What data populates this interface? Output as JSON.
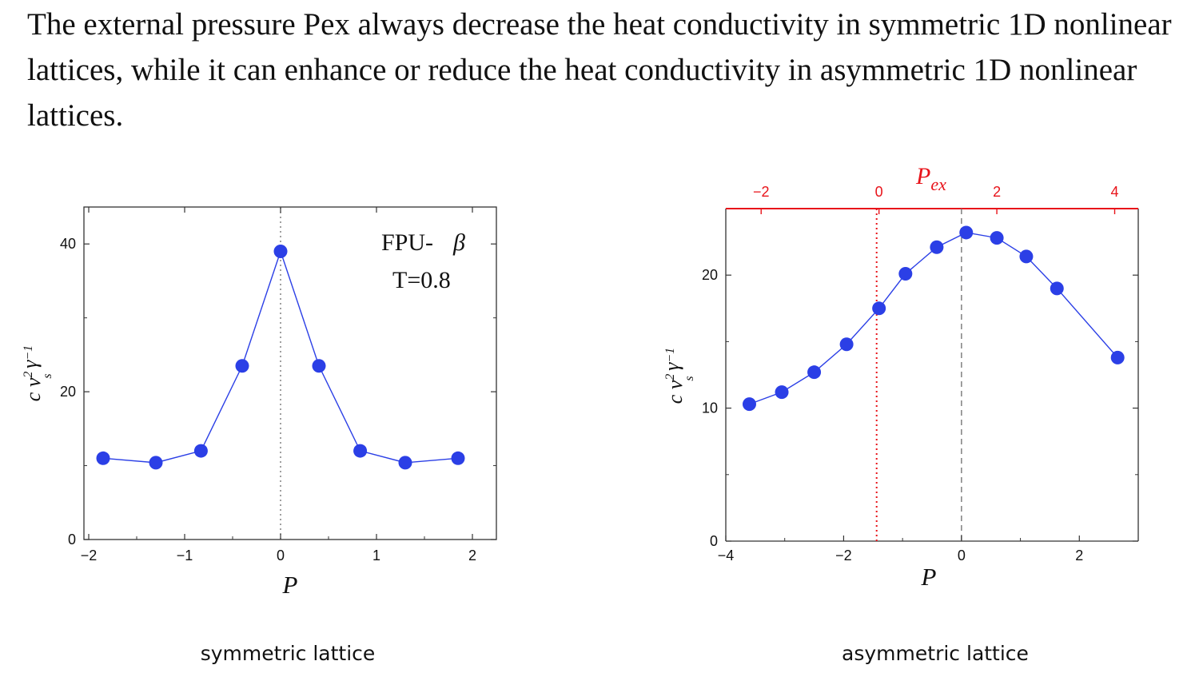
{
  "headline": "The external pressure Pex always decrease the heat conductivity in symmetric 1D nonlinear lattices, while it can enhance or reduce the heat conductivity in asymmetric 1D nonlinear lattices.",
  "colors": {
    "marker": "#2b3fe6",
    "line": "#2b3fe6",
    "red_axis": "#e8131a",
    "frame": "#333333"
  },
  "chart_data": [
    {
      "type": "line",
      "caption": "symmetric lattice",
      "xlabel": "P",
      "ylabel": "c v_s^2 γ^-1",
      "xlim": [
        -2.05,
        2.25
      ],
      "ylim": [
        0,
        45
      ],
      "xticks": [
        -2,
        -1,
        0,
        1,
        2
      ],
      "xtick_labels": [
        "−2",
        "−1",
        "0",
        "1",
        "2"
      ],
      "yticks": [
        0,
        20,
        40
      ],
      "ytick_labels": [
        "0",
        "20",
        "40"
      ],
      "annotations": [
        "FPU-β",
        "T=0.8"
      ],
      "vline_x": 0,
      "series": [
        {
          "x": [
            -1.85,
            -1.3,
            -0.83,
            -0.4,
            0,
            0.4,
            0.83,
            1.3,
            1.85
          ],
          "y": [
            11,
            10.4,
            12,
            23.5,
            39,
            23.5,
            12,
            10.4,
            11
          ]
        }
      ]
    },
    {
      "type": "line",
      "caption": "asymmetric lattice",
      "xlabel": "P",
      "ylabel": "c v_s^2 γ^-1",
      "top_xlabel": "P_ex",
      "xlim": [
        -4,
        3
      ],
      "ylim": [
        0,
        25
      ],
      "xticks": [
        -4,
        -2,
        0,
        2
      ],
      "xtick_labels": [
        "−4",
        "−2",
        "0",
        "2"
      ],
      "yticks": [
        0,
        10,
        20
      ],
      "ytick_labels": [
        "0",
        "10",
        "20"
      ],
      "top_xticks": [
        -2,
        0,
        2,
        4
      ],
      "top_xtick_labels": [
        "−2",
        "0",
        "2",
        "4"
      ],
      "top_xlim": [
        -2.6,
        4.4
      ],
      "vline_red_x": -1.44,
      "vline_gray_x": 0,
      "series": [
        {
          "x": [
            -3.6,
            -3.05,
            -2.5,
            -1.95,
            -1.4,
            -0.95,
            -0.42,
            0.08,
            0.6,
            1.1,
            1.62,
            2.65
          ],
          "y": [
            10.3,
            11.2,
            12.7,
            14.8,
            17.5,
            20.1,
            22.1,
            23.2,
            22.8,
            21.4,
            19.0,
            13.8
          ]
        }
      ]
    }
  ]
}
